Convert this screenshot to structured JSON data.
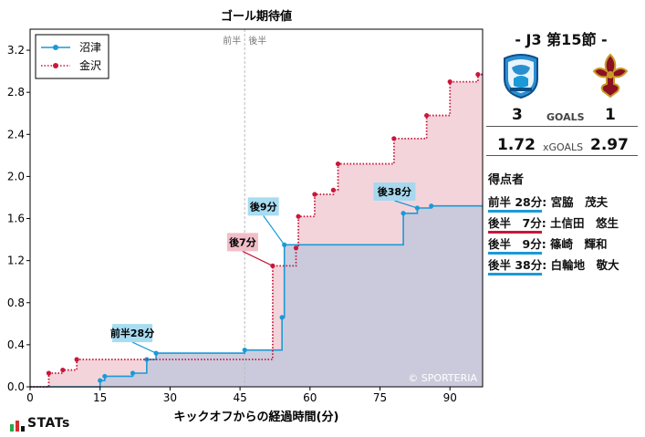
{
  "chart_data": {
    "type": "line",
    "title": "ゴール期待値",
    "xlabel": "キックオフからの経過時間(分)",
    "ylabel": "",
    "xlim": [
      0,
      97
    ],
    "ylim": [
      0,
      3.4
    ],
    "xticks": [
      0,
      15,
      30,
      45,
      60,
      75,
      90
    ],
    "yticks": [
      0.0,
      0.4,
      0.8,
      1.2,
      1.6,
      2.0,
      2.4,
      2.8,
      3.2
    ],
    "half_time_x": 46,
    "half_labels": [
      "前半",
      "後半"
    ],
    "watermark": "© SPORTERIA",
    "legend_position": "top-left",
    "series": [
      {
        "name": "沼津",
        "color": "#1a9ad6",
        "fill": "#c5c9db",
        "style": "solid",
        "points": [
          [
            0,
            0
          ],
          [
            15,
            0.06
          ],
          [
            16,
            0.1
          ],
          [
            22,
            0.13
          ],
          [
            25,
            0.26
          ],
          [
            27,
            0.32
          ],
          [
            46,
            0.35
          ],
          [
            54,
            0.66
          ],
          [
            54.5,
            1.35
          ],
          [
            80,
            1.65
          ],
          [
            83,
            1.7
          ],
          [
            86,
            1.72
          ],
          [
            97,
            1.72
          ]
        ]
      },
      {
        "name": "金沢",
        "color": "#c8173a",
        "fill": "#f2cdd5",
        "style": "dotted",
        "points": [
          [
            0,
            0
          ],
          [
            4,
            0.13
          ],
          [
            7,
            0.16
          ],
          [
            10,
            0.26
          ],
          [
            52,
            1.15
          ],
          [
            57,
            1.32
          ],
          [
            57.5,
            1.62
          ],
          [
            61,
            1.83
          ],
          [
            65,
            1.87
          ],
          [
            66,
            2.12
          ],
          [
            78,
            2.36
          ],
          [
            85,
            2.58
          ],
          [
            90,
            2.9
          ],
          [
            96,
            2.97
          ],
          [
            97,
            2.97
          ]
        ]
      }
    ],
    "annotations": [
      {
        "label": "前半28分",
        "x": 27,
        "y": 0.32,
        "team": "home"
      },
      {
        "label": "後9分",
        "x": 54.5,
        "y": 1.35,
        "team": "home"
      },
      {
        "label": "後7分",
        "x": 52,
        "y": 1.15,
        "team": "away"
      },
      {
        "label": "後38分",
        "x": 83,
        "y": 1.7,
        "team": "home"
      }
    ]
  },
  "colors": {
    "home": "#1a9ad6",
    "away": "#c8173a",
    "home_label_bg": "#9fd8f0",
    "away_label_bg": "#f0b7c2"
  },
  "match": {
    "title": "- J3 第15節 -",
    "home_crest_icon": "numazu-crest-icon",
    "away_crest_icon": "kanazawa-crest-icon",
    "home_goals": "3",
    "away_goals": "1",
    "goals_label": "GOALS",
    "home_xg": "1.72",
    "away_xg": "2.97",
    "xg_label": "xGOALS"
  },
  "scorers": {
    "title": "得点者",
    "items": [
      {
        "time": "前半 28分",
        "name": ": 宮脇　茂夫",
        "team": "home"
      },
      {
        "time": "後半　7分",
        "name": ": 土信田　悠生",
        "team": "away"
      },
      {
        "time": "後半　9分",
        "name": ": 篠崎　輝和",
        "team": "home"
      },
      {
        "time": "後半 38分",
        "name": ": 白輪地　敬大",
        "team": "home"
      }
    ]
  },
  "footer": {
    "brand": "STATs",
    "brand_icon": "stats-bar-icon"
  }
}
